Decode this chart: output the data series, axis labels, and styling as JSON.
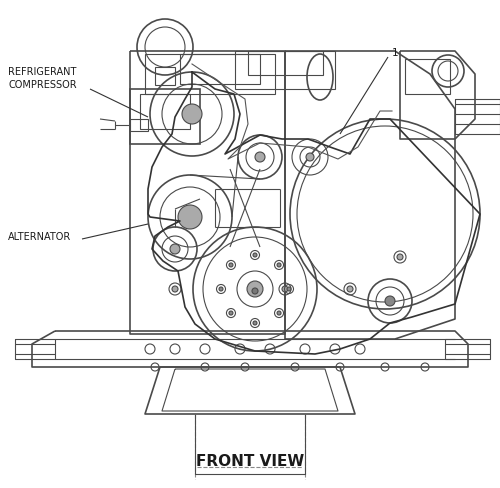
{
  "bottom_label": "FRONT VIEW",
  "label_refrigerant_1": "REFRIGERANT",
  "label_refrigerant_2": "COMPRESSOR",
  "label_alternator": "ALTERNATOR",
  "label_number": "1",
  "bg_color": "#ffffff",
  "lc": "#4a4a4a",
  "lc_dark": "#2a2a2a",
  "lc_light": "#777777",
  "figsize": [
    5.0,
    4.89
  ],
  "dpi": 100
}
